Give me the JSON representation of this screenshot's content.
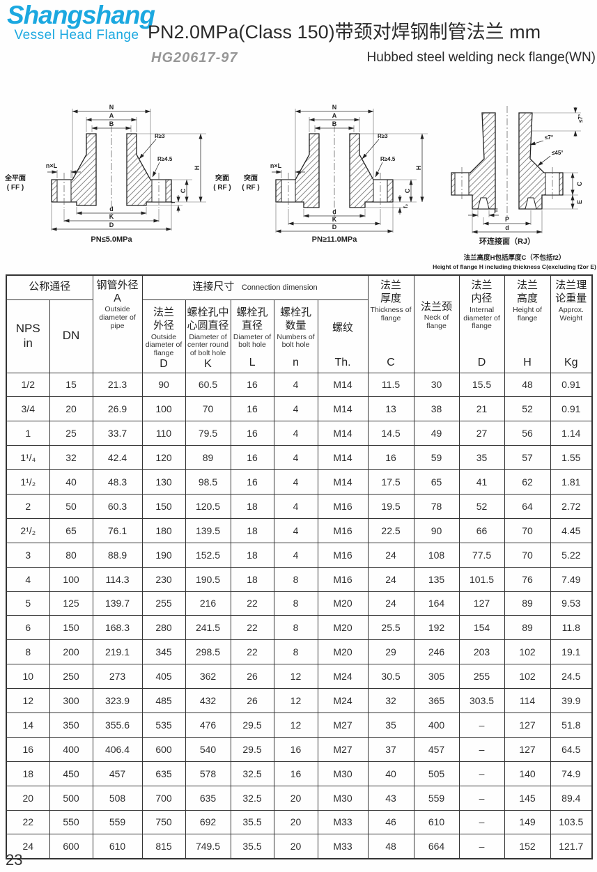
{
  "colors": {
    "brand_blue": "#1ba8e0",
    "line": "#222222"
  },
  "logo": {
    "name": "Shangshang",
    "tagline": "Vessel Head Flange"
  },
  "header": {
    "title": "PN2.0MPa(Class 150)带颈对焊钢制管法兰 mm",
    "standard": "HG20617-97",
    "subtitle_en": "Hubbed steel welding neck flange(WN)"
  },
  "diagrams": {
    "dims": {
      "N": "N",
      "A": "A",
      "B": "B",
      "R3": "R≥3",
      "R45": "R≥4.5",
      "nxL": "n×L",
      "H": "H",
      "C": "C",
      "f": "f",
      "f2": "f₂",
      "d": "d",
      "K": "K",
      "D": "D",
      "E": "E",
      "F": "F",
      "P": "P",
      "deg7": "≤7°",
      "deg45": "≤45°"
    },
    "d1": {
      "caption": "PN≤5.0MPa",
      "face_left_1": "全平面",
      "face_left_2": "( FF )",
      "face_right_1": "突面",
      "face_right_2": "( RF )"
    },
    "d2": {
      "caption": "PN≥11.0MPa",
      "face_left_1": "突面",
      "face_left_2": "( RF )"
    },
    "d3": {
      "caption": "环连接面（RJ）",
      "note_cn": "法兰高度H包括厚度C（不包括f2）",
      "note_en": "Height of flange H including thickness C(excluding f2or E)"
    }
  },
  "table": {
    "h_nominal": "公称通径",
    "h_nps": "NPS\nin",
    "h_dn": "DN",
    "h_pipe_cn": "钢管外径",
    "h_pipe_sym": "A",
    "h_pipe_en": "Outside diameter of pipe",
    "h_conn_cn": "连接尺寸",
    "h_conn_en": "Connection dimension",
    "h_od_cn": "法兰外径",
    "h_od_en": "Outside diameter of flange",
    "h_od_sym": "D",
    "h_k_cn": "螺栓孔中心圆直径",
    "h_k_en": "Diameter of center round of bolt hole",
    "h_k_sym": "K",
    "h_l_cn": "螺栓孔直径",
    "h_l_en": "Diameter of bolt hole",
    "h_l_sym": "L",
    "h_n_cn": "螺栓孔数量",
    "h_n_en": "Numbers of bolt hole",
    "h_n_sym": "n",
    "h_th_cn": "螺纹",
    "h_th_sym": "Th.",
    "h_c_cn": "法兰厚度",
    "h_c_en": "Thickness of flange",
    "h_c_sym": "C",
    "h_neck_cn": "法兰颈",
    "h_neck_en": "Neck of flange",
    "h_id_cn": "法兰内径",
    "h_id_en": "Internal diameter of flange",
    "h_id_sym": "D",
    "h_h_cn": "法兰高度",
    "h_h_en": "Height of flange",
    "h_h_sym": "H",
    "h_w_cn": "法兰理论重量",
    "h_w_en": "Approx. Weight",
    "h_w_sym": "Kg",
    "rows": [
      [
        "1/2",
        "15",
        "21.3",
        "90",
        "60.5",
        "16",
        "4",
        "M14",
        "11.5",
        "30",
        "15.5",
        "48",
        "0.91"
      ],
      [
        "3/4",
        "20",
        "26.9",
        "100",
        "70",
        "16",
        "4",
        "M14",
        "13",
        "38",
        "21",
        "52",
        "0.91"
      ],
      [
        "1",
        "25",
        "33.7",
        "110",
        "79.5",
        "16",
        "4",
        "M14",
        "14.5",
        "49",
        "27",
        "56",
        "1.14"
      ],
      [
        "1¹/₄",
        "32",
        "42.4",
        "120",
        "89",
        "16",
        "4",
        "M14",
        "16",
        "59",
        "35",
        "57",
        "1.55"
      ],
      [
        "1¹/₂",
        "40",
        "48.3",
        "130",
        "98.5",
        "16",
        "4",
        "M14",
        "17.5",
        "65",
        "41",
        "62",
        "1.81"
      ],
      [
        "2",
        "50",
        "60.3",
        "150",
        "120.5",
        "18",
        "4",
        "M16",
        "19.5",
        "78",
        "52",
        "64",
        "2.72"
      ],
      [
        "2¹/₂",
        "65",
        "76.1",
        "180",
        "139.5",
        "18",
        "4",
        "M16",
        "22.5",
        "90",
        "66",
        "70",
        "4.45"
      ],
      [
        "3",
        "80",
        "88.9",
        "190",
        "152.5",
        "18",
        "4",
        "M16",
        "24",
        "108",
        "77.5",
        "70",
        "5.22"
      ],
      [
        "4",
        "100",
        "114.3",
        "230",
        "190.5",
        "18",
        "8",
        "M16",
        "24",
        "135",
        "101.5",
        "76",
        "7.49"
      ],
      [
        "5",
        "125",
        "139.7",
        "255",
        "216",
        "22",
        "8",
        "M20",
        "24",
        "164",
        "127",
        "89",
        "9.53"
      ],
      [
        "6",
        "150",
        "168.3",
        "280",
        "241.5",
        "22",
        "8",
        "M20",
        "25.5",
        "192",
        "154",
        "89",
        "11.8"
      ],
      [
        "8",
        "200",
        "219.1",
        "345",
        "298.5",
        "22",
        "8",
        "M20",
        "29",
        "246",
        "203",
        "102",
        "19.1"
      ],
      [
        "10",
        "250",
        "273",
        "405",
        "362",
        "26",
        "12",
        "M24",
        "30.5",
        "305",
        "255",
        "102",
        "24.5"
      ],
      [
        "12",
        "300",
        "323.9",
        "485",
        "432",
        "26",
        "12",
        "M24",
        "32",
        "365",
        "303.5",
        "114",
        "39.9"
      ],
      [
        "14",
        "350",
        "355.6",
        "535",
        "476",
        "29.5",
        "12",
        "M27",
        "35",
        "400",
        "–",
        "127",
        "51.8"
      ],
      [
        "16",
        "400",
        "406.4",
        "600",
        "540",
        "29.5",
        "16",
        "M27",
        "37",
        "457",
        "–",
        "127",
        "64.5"
      ],
      [
        "18",
        "450",
        "457",
        "635",
        "578",
        "32.5",
        "16",
        "M30",
        "40",
        "505",
        "–",
        "140",
        "74.9"
      ],
      [
        "20",
        "500",
        "508",
        "700",
        "635",
        "32.5",
        "20",
        "M30",
        "43",
        "559",
        "–",
        "145",
        "89.4"
      ],
      [
        "22",
        "550",
        "559",
        "750",
        "692",
        "35.5",
        "20",
        "M33",
        "46",
        "610",
        "–",
        "149",
        "103.5"
      ],
      [
        "24",
        "600",
        "610",
        "815",
        "749.5",
        "35.5",
        "20",
        "M33",
        "48",
        "664",
        "–",
        "152",
        "121.7"
      ]
    ]
  },
  "footer": {
    "page_number": "23"
  }
}
